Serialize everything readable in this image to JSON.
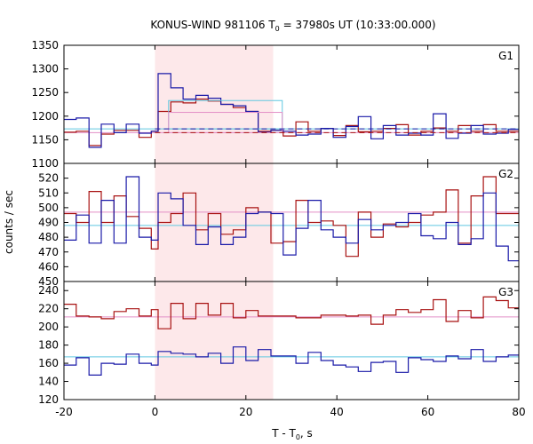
{
  "chart_data": {
    "type": "line",
    "title": "KONUS-WIND 981106 T",
    "title_sub": "0",
    "title_rest": " = 37980s UT (10:33:00.000)",
    "xlabel_main": "T - T",
    "xlabel_sub": "0",
    "xlabel_rest": ", s",
    "ylabel": "counts / sec",
    "xlim": [
      -20,
      80
    ],
    "x_ticks": [
      -20,
      0,
      20,
      40,
      60,
      80
    ],
    "shaded_interval": [
      0,
      26
    ],
    "bin_edges": [
      -20,
      -17.3,
      -14.5,
      -11.8,
      -9.0,
      -6.3,
      -3.5,
      -0.8,
      0.7,
      3.5,
      6.2,
      9.0,
      11.7,
      14.5,
      17.2,
      20.0,
      22.7,
      25.5,
      28.2,
      31.0,
      33.7,
      36.5,
      39.2,
      42.0,
      44.7,
      47.5,
      50.2,
      53.0,
      55.7,
      58.5,
      61.2,
      64.0,
      66.7,
      69.5,
      72.2,
      75.0,
      77.7,
      80
    ],
    "panels": [
      {
        "label": "G1",
        "ylim": [
          1100,
          1350
        ],
        "y_ticks": [
          1100,
          1150,
          1200,
          1250,
          1300,
          1350
        ],
        "series_blue": [
          1193,
          1196,
          1134,
          1183,
          1165,
          1183,
          1164,
          1168,
          1290,
          1260,
          1236,
          1244,
          1238,
          1225,
          1222,
          1210,
          1166,
          1170,
          1168,
          1160,
          1162,
          1174,
          1155,
          1178,
          1199,
          1152,
          1180,
          1160,
          1164,
          1160,
          1205,
          1153,
          1164,
          1180,
          1162,
          1164,
          1172
        ],
        "series_red": [
          1166,
          1168,
          1138,
          1162,
          1170,
          1170,
          1155,
          1168,
          1210,
          1230,
          1228,
          1236,
          1232,
          1225,
          1218,
          1210,
          1168,
          1170,
          1158,
          1188,
          1168,
          1174,
          1159,
          1180,
          1167,
          1168,
          1174,
          1182,
          1160,
          1168,
          1175,
          1168,
          1180,
          1168,
          1182,
          1168,
          1168
        ],
        "bg_blue": 1173,
        "bg_red": 1165,
        "box_blue": [
          3,
          28,
          1233
        ],
        "box_red": [
          3,
          28,
          1208
        ]
      },
      {
        "label": "G2",
        "ylim": [
          450,
          530
        ],
        "y_ticks": [
          450,
          460,
          470,
          480,
          490,
          500,
          510,
          520
        ],
        "series_blue": [
          478,
          495,
          476,
          505,
          476,
          521,
          480,
          478,
          510,
          506,
          488,
          475,
          487,
          475,
          480,
          496,
          497,
          496,
          468,
          486,
          505,
          485,
          480,
          476,
          492,
          485,
          488,
          490,
          496,
          481,
          479,
          490,
          475,
          479,
          510,
          474,
          464
        ],
        "series_red": [
          496,
          490,
          511,
          490,
          508,
          494,
          486,
          472,
          490,
          496,
          510,
          485,
          496,
          482,
          485,
          500,
          497,
          476,
          477,
          505,
          490,
          491,
          488,
          467,
          497,
          480,
          489,
          487,
          490,
          495,
          497,
          512,
          476,
          508,
          521,
          496,
          496
        ],
        "bg_blue": 488,
        "bg_red": 497
      },
      {
        "label": "G3",
        "ylim": [
          120,
          250
        ],
        "y_ticks": [
          120,
          140,
          160,
          180,
          200,
          220,
          240
        ],
        "series_blue": [
          158,
          166,
          147,
          160,
          159,
          170,
          160,
          158,
          173,
          171,
          170,
          167,
          171,
          160,
          178,
          163,
          175,
          168,
          168,
          160,
          172,
          163,
          158,
          156,
          151,
          161,
          162,
          150,
          166,
          164,
          162,
          168,
          165,
          175,
          162,
          167,
          169
        ],
        "series_red": [
          225,
          212,
          211,
          209,
          217,
          220,
          212,
          219,
          198,
          226,
          209,
          226,
          213,
          226,
          210,
          218,
          212,
          212,
          212,
          210,
          210,
          213,
          213,
          212,
          213,
          203,
          213,
          219,
          216,
          219,
          230,
          206,
          218,
          210,
          233,
          229,
          221
        ],
        "bg_blue": 167,
        "bg_red": 211
      }
    ],
    "colors": {
      "blue": "#1a1aa8",
      "red": "#a81212",
      "bg_blue_line": "#5fc8e0",
      "bg_red_line": "#e38fc7",
      "shade": "#fde8ea",
      "axis": "#000000"
    }
  }
}
